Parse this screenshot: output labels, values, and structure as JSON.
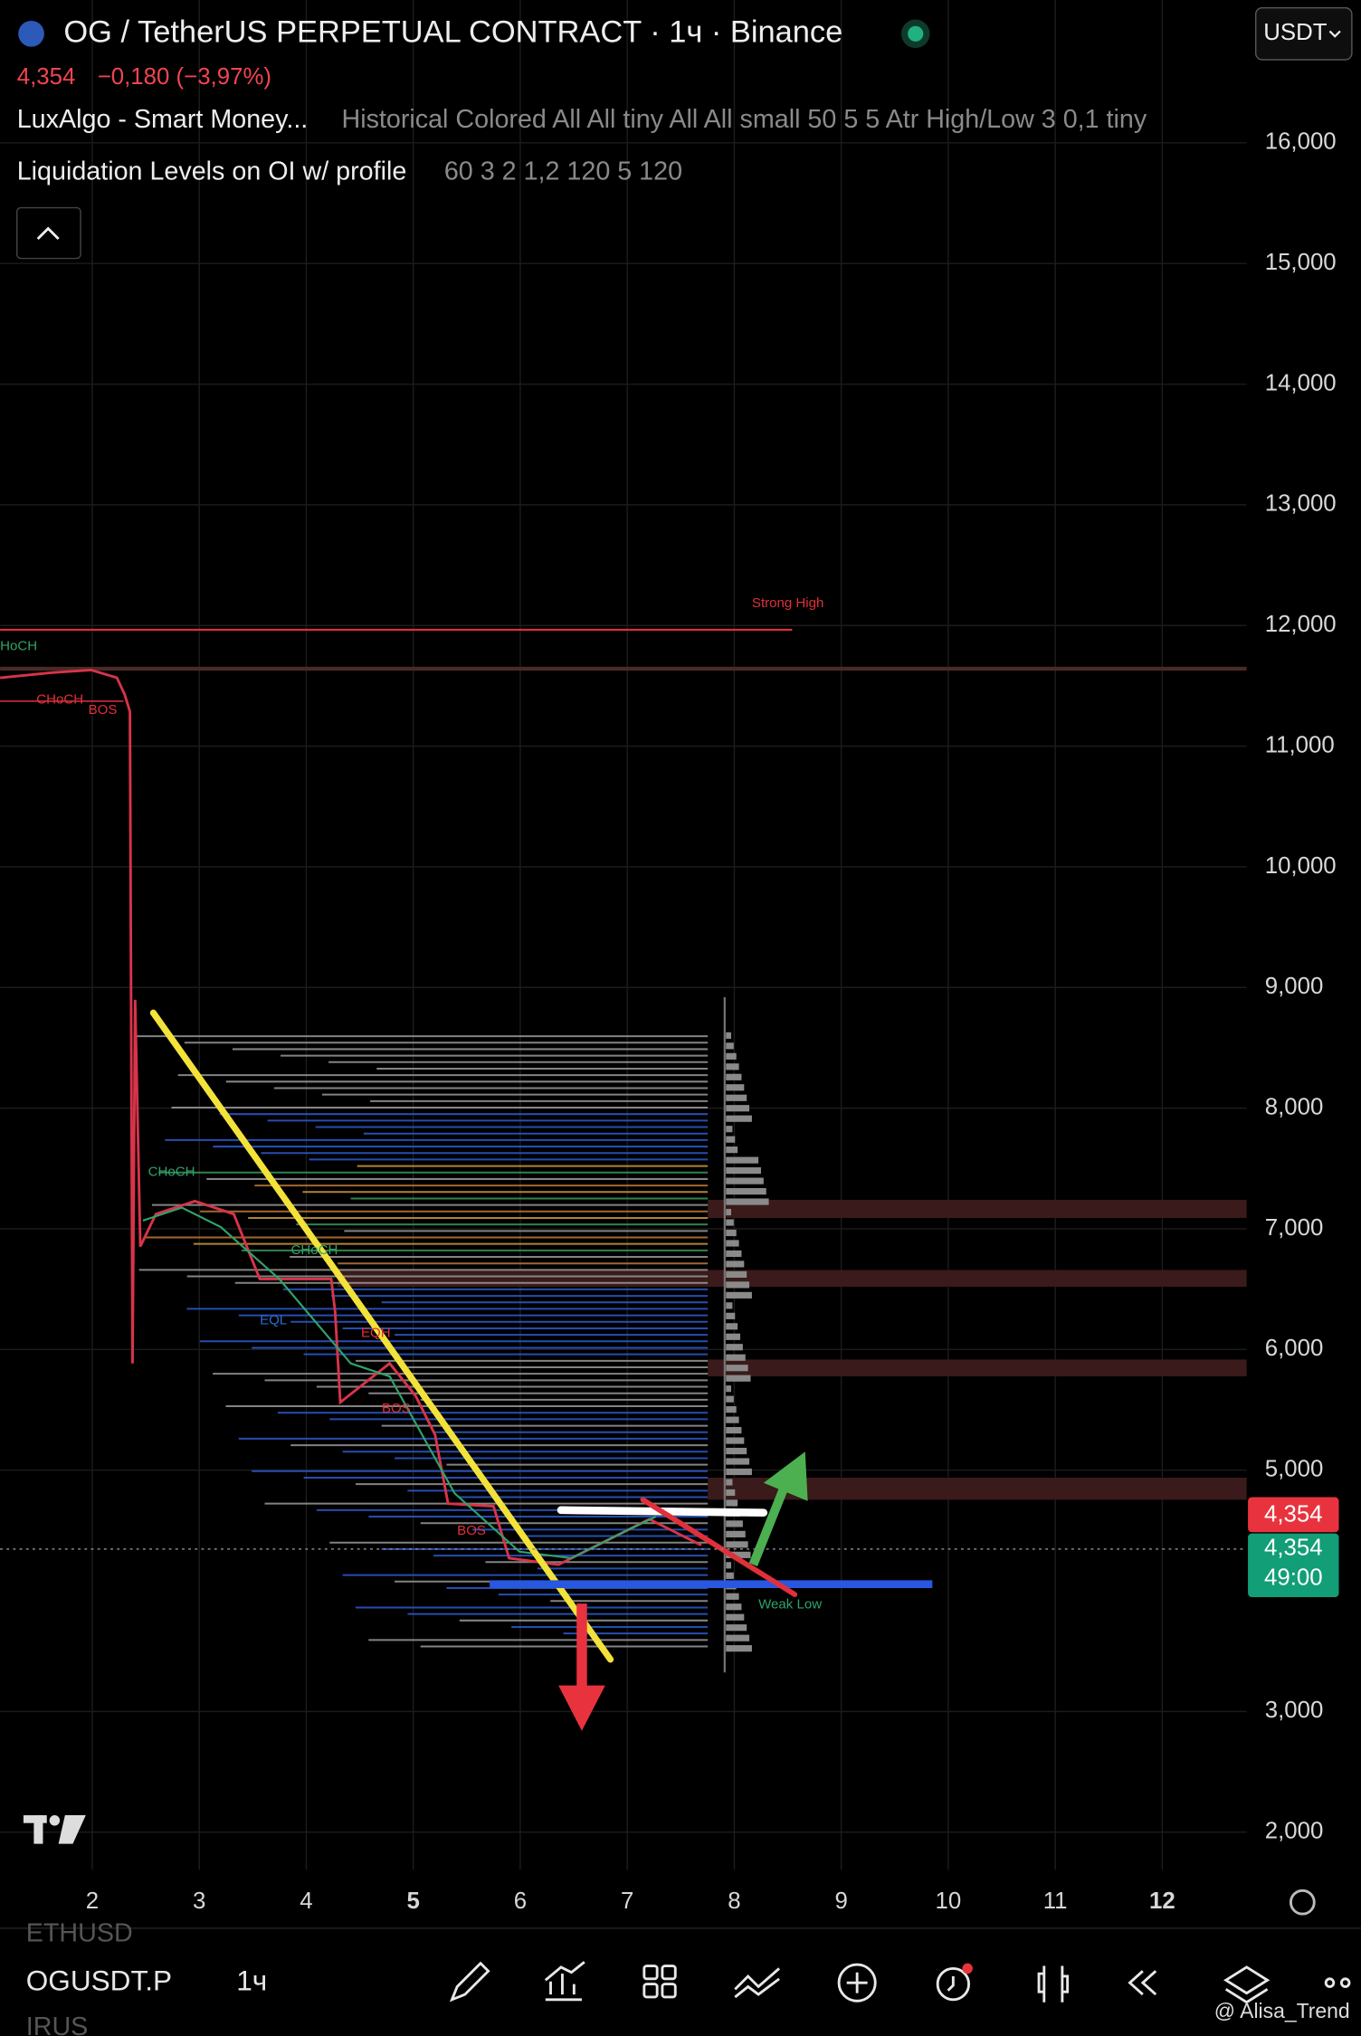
{
  "header": {
    "title": "OG / TetherUS PERPETUAL CONTRACT · 1ч · Binance",
    "price": "4,354",
    "change": "−0,180 (−3,97%)",
    "currency": "USDT"
  },
  "indicators": [
    {
      "name": "LuxAlgo - Smart Money...",
      "params": "Historical Colored All All tiny All All small 50 5 5 Atr High/Low 3 0,1 tiny"
    },
    {
      "name": "Liquidation Levels on OI w/ profile",
      "params": "60 3 2 1,2 120 5 120"
    }
  ],
  "chart": {
    "yticks": [
      {
        "value": 16000,
        "label": "16,000"
      },
      {
        "value": 15000,
        "label": "15,000"
      },
      {
        "value": 14000,
        "label": "14,000"
      },
      {
        "value": 13000,
        "label": "13,000"
      },
      {
        "value": 12000,
        "label": "12,000"
      },
      {
        "value": 11000,
        "label": "11,000"
      },
      {
        "value": 10000,
        "label": "10,000"
      },
      {
        "value": 9000,
        "label": "9,000"
      },
      {
        "value": 8000,
        "label": "8,000"
      },
      {
        "value": 7000,
        "label": "7,000"
      },
      {
        "value": 6000,
        "label": "6,000"
      },
      {
        "value": 5000,
        "label": "5,000"
      },
      {
        "value": 3000,
        "label": "3,000"
      },
      {
        "value": 2000,
        "label": "2,000"
      }
    ],
    "xticks": [
      2,
      3,
      4,
      5,
      6,
      7,
      8,
      9,
      10,
      11,
      12
    ],
    "annotations": {
      "strong_high": "Strong High",
      "weak_low": "Weak Low",
      "choch_left": "HoCH",
      "choch_1": "CHoCH",
      "bos_1": "BOS",
      "choch_2": "CHoCH",
      "bos_2": "BOS",
      "bos_3": "BOS",
      "eqh": "EQH",
      "eql": "EQL",
      "choch_3": "CHoCH"
    },
    "last_price": "4,354",
    "mark_price": "4,354",
    "countdown": "49:00"
  },
  "toolbar": {
    "prev_symbol": "ETHUSD",
    "symbol": "OGUSDT.P",
    "interval": "1ч",
    "next_symbol": "IRUS"
  },
  "watermark": "@ Alisa_Trend"
}
